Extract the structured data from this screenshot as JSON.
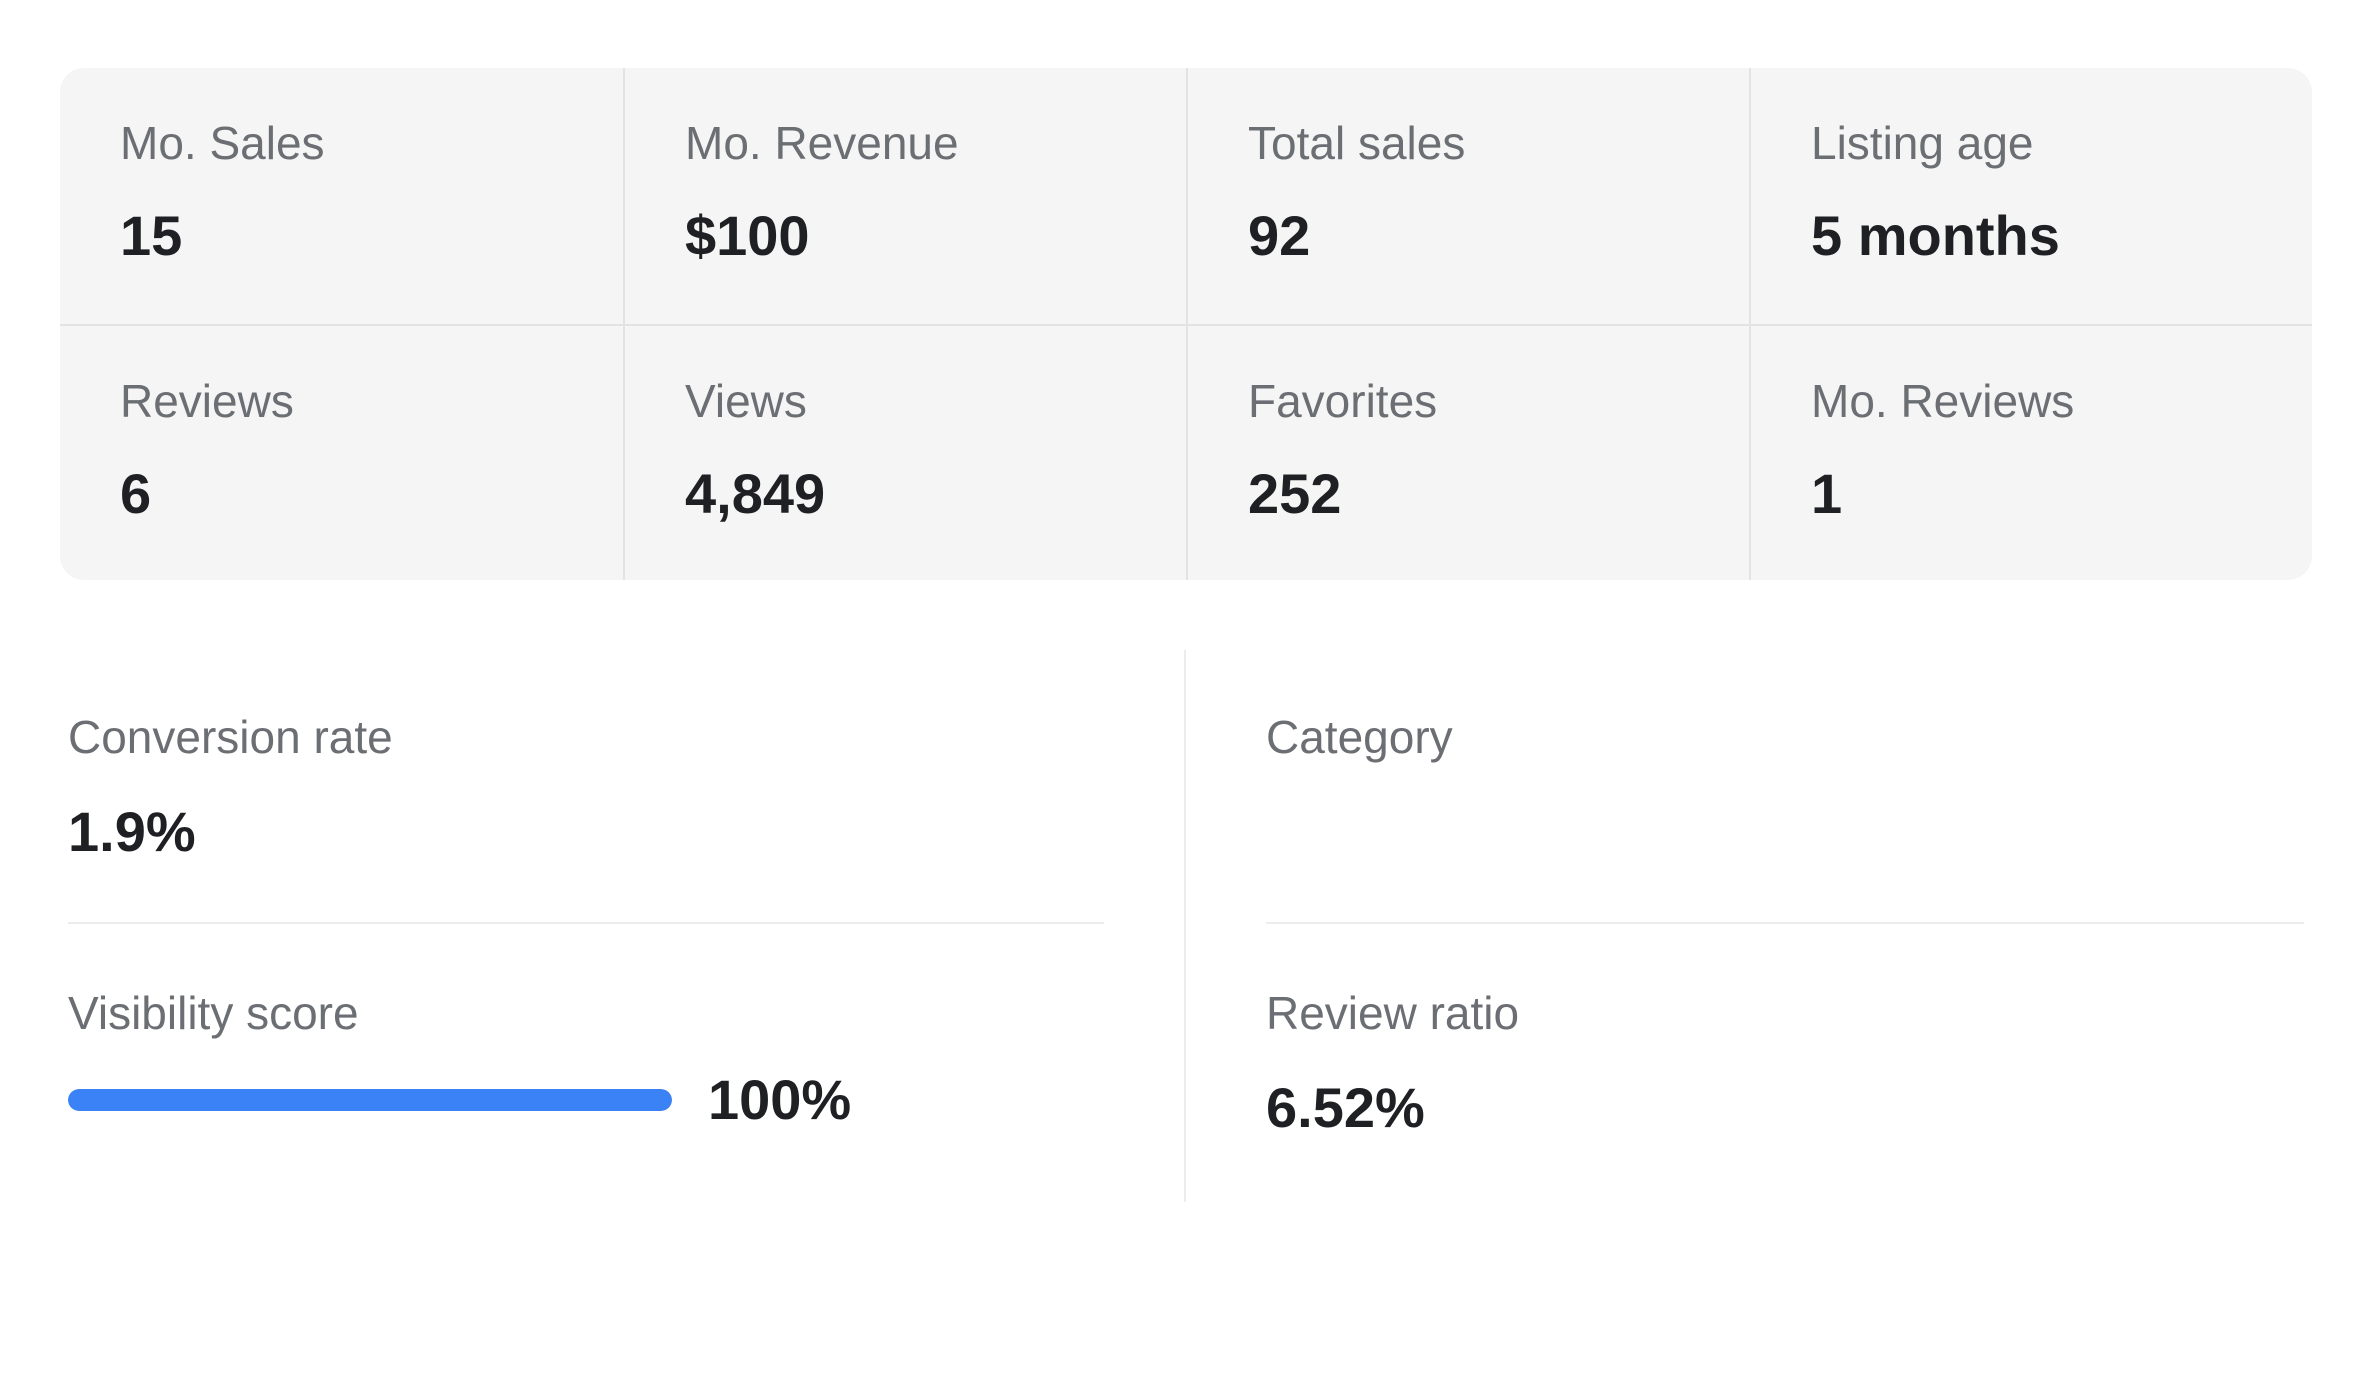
{
  "stats": [
    {
      "label": "Mo. Sales",
      "value": "15"
    },
    {
      "label": "Mo. Revenue",
      "value": "$100"
    },
    {
      "label": "Total sales",
      "value": "92"
    },
    {
      "label": "Listing age",
      "value": "5 months"
    },
    {
      "label": "Reviews",
      "value": "6"
    },
    {
      "label": "Views",
      "value": "4,849"
    },
    {
      "label": "Favorites",
      "value": "252"
    },
    {
      "label": "Mo. Reviews",
      "value": "1"
    }
  ],
  "details": {
    "conversion_rate": {
      "label": "Conversion rate",
      "value": "1.9%"
    },
    "category": {
      "label": "Category",
      "value": ""
    },
    "visibility_score": {
      "label": "Visibility score",
      "value_text": "100%",
      "level_percent": 100
    },
    "review_ratio": {
      "label": "Review ratio",
      "value": "6.52%"
    }
  },
  "colors": {
    "accent": "#3b82f6",
    "card_background": "#f5f5f5",
    "label_text": "#6b6e73",
    "value_text": "#1f2023"
  }
}
